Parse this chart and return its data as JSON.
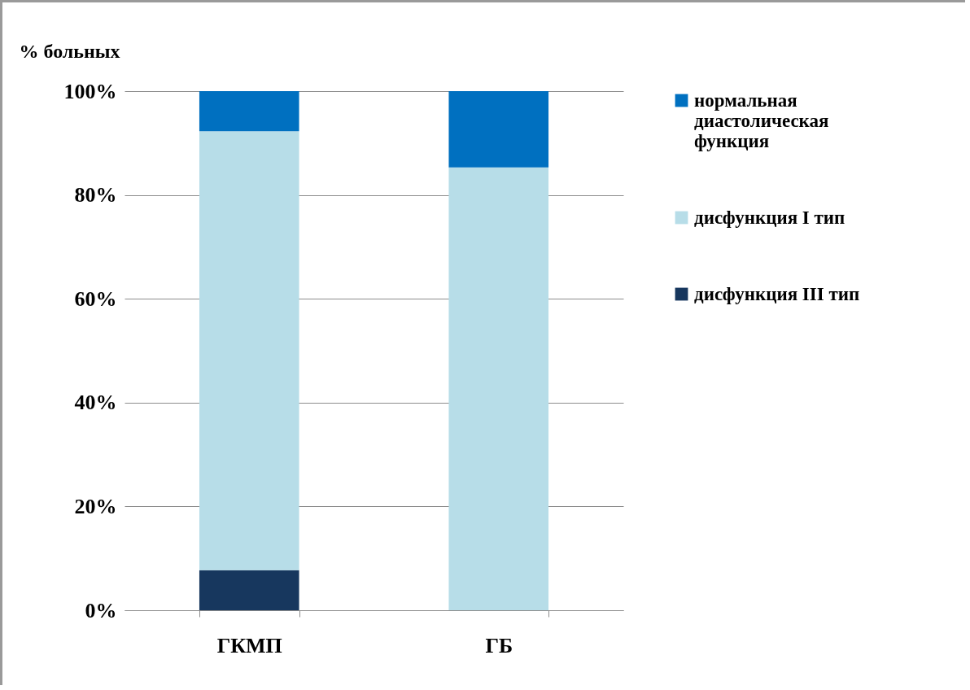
{
  "chart_data": {
    "type": "bar",
    "stacked": true,
    "ylabel": "% больных",
    "categories": [
      "ГКМП",
      "ГБ"
    ],
    "series": [
      {
        "name": "дисфункция III тип",
        "color": "#17375e",
        "values": [
          7.7,
          0
        ]
      },
      {
        "name": "дисфункция I тип",
        "color": "#b7dde8",
        "values": [
          84.6,
          85.3
        ]
      },
      {
        "name": "нормальная диастолическая функция",
        "color": "#0070c0",
        "values": [
          7.7,
          14.7
        ]
      }
    ],
    "ylim": [
      0,
      100
    ],
    "yticks": [
      {
        "value": 0,
        "label": "0%"
      },
      {
        "value": 20,
        "label": "20%"
      },
      {
        "value": 40,
        "label": "40%"
      },
      {
        "value": 60,
        "label": "60%"
      },
      {
        "value": 80,
        "label": "80%"
      },
      {
        "value": 100,
        "label": "100%"
      }
    ],
    "grid": "y",
    "legend": "right"
  }
}
